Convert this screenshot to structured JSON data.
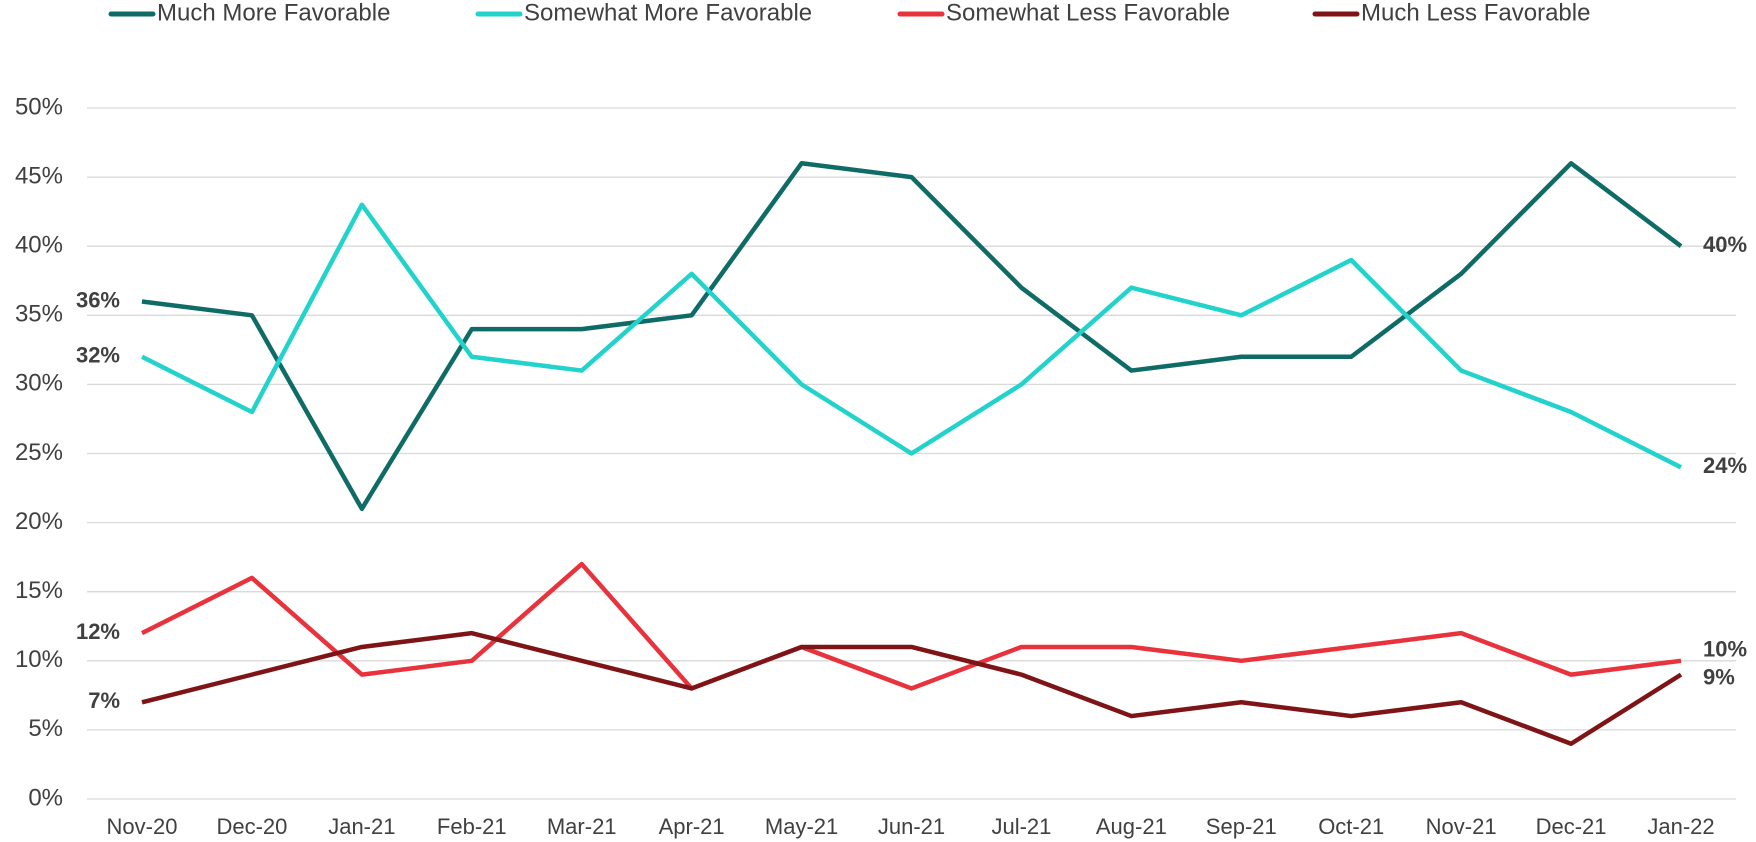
{
  "chart_data": {
    "type": "line",
    "categories": [
      "Nov-20",
      "Dec-20",
      "Jan-21",
      "Feb-21",
      "Mar-21",
      "Apr-21",
      "May-21",
      "Jun-21",
      "Jul-21",
      "Aug-21",
      "Sep-21",
      "Oct-21",
      "Nov-21",
      "Dec-21",
      "Jan-22"
    ],
    "series": [
      {
        "name": "Much More Favorable",
        "color": "#0e6b66",
        "values": [
          36,
          35,
          21,
          34,
          34,
          35,
          46,
          45,
          37,
          31,
          32,
          32,
          38,
          46,
          40
        ],
        "value_labels": [
          "36%",
          null,
          null,
          null,
          null,
          null,
          null,
          null,
          null,
          null,
          null,
          null,
          null,
          null,
          "40%"
        ]
      },
      {
        "name": "Somewhat More Favorable",
        "color": "#22d3cc",
        "values": [
          32,
          28,
          43,
          32,
          31,
          38,
          30,
          25,
          30,
          37,
          35,
          39,
          31,
          28,
          24
        ],
        "value_labels": [
          "32%",
          null,
          null,
          null,
          null,
          null,
          null,
          null,
          null,
          null,
          null,
          null,
          null,
          null,
          "24%"
        ]
      },
      {
        "name": "Somewhat Less Favorable",
        "color": "#e8333d",
        "values": [
          12,
          16,
          9,
          10,
          17,
          8,
          11,
          8,
          11,
          11,
          10,
          11,
          12,
          9,
          10
        ],
        "value_labels": [
          "12%",
          null,
          null,
          null,
          null,
          null,
          null,
          null,
          null,
          null,
          null,
          null,
          null,
          null,
          "10%"
        ]
      },
      {
        "name": "Much Less Favorable",
        "color": "#7f1416",
        "values": [
          7,
          9,
          11,
          12,
          10,
          8,
          11,
          11,
          9,
          6,
          7,
          6,
          7,
          4,
          9
        ],
        "value_labels": [
          "7%",
          null,
          null,
          null,
          null,
          null,
          null,
          null,
          null,
          null,
          null,
          null,
          null,
          null,
          "9%"
        ]
      }
    ],
    "ylim": [
      0,
      50
    ],
    "yticks": [
      {
        "value": 0,
        "label": "0%"
      },
      {
        "value": 5,
        "label": "5%"
      },
      {
        "value": 10,
        "label": "10%"
      },
      {
        "value": 15,
        "label": "15%"
      },
      {
        "value": 20,
        "label": "20%"
      },
      {
        "value": 25,
        "label": "25%"
      },
      {
        "value": 30,
        "label": "30%"
      },
      {
        "value": 35,
        "label": "35%"
      },
      {
        "value": 40,
        "label": "40%"
      },
      {
        "value": 45,
        "label": "45%"
      },
      {
        "value": 50,
        "label": "50%"
      }
    ],
    "grid": true,
    "legend": "top"
  }
}
